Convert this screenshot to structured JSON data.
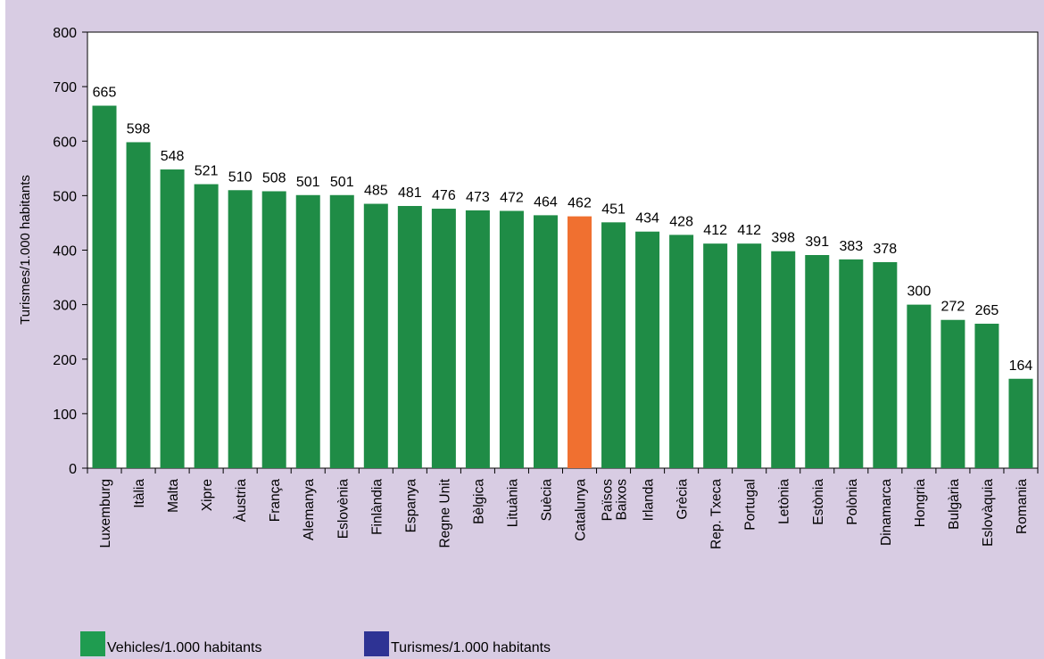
{
  "chart_data": {
    "type": "bar",
    "title": "",
    "xlabel": "",
    "ylabel": "Turismes/1.000 habitants",
    "ylim": [
      0,
      800
    ],
    "yticks": [
      0,
      100,
      200,
      300,
      400,
      500,
      600,
      700,
      800
    ],
    "grid": false,
    "legend_position": "bottom-left",
    "categories": [
      "Luxemburg",
      "Itàlia",
      "Malta",
      "Xipre",
      "Àustria",
      "França",
      "Alemanya",
      "Eslovènia",
      "Finlàndia",
      "Espanya",
      "Regne Unit",
      "Bèlgica",
      "Lituània",
      "Suècia",
      "Catalunya",
      "Països Baixos",
      "Irlanda",
      "Grècia",
      "Rep. Txeca",
      "Portugal",
      "Letònia",
      "Estònia",
      "Polònia",
      "Dinamarca",
      "Hongria",
      "Bulgària",
      "Eslovàquia",
      "Romania"
    ],
    "series": [
      {
        "name": "Vehicles/1.000 habitants",
        "values": [
          665,
          598,
          548,
          521,
          510,
          508,
          501,
          501,
          485,
          481,
          476,
          473,
          472,
          464,
          462,
          451,
          434,
          428,
          412,
          412,
          398,
          391,
          383,
          378,
          300,
          272,
          265,
          164
        ]
      }
    ],
    "highlight": {
      "category": "Catalunya",
      "color": "#f07030"
    },
    "colors": {
      "bar": "#1f8c46",
      "highlight": "#f07030",
      "background": "#d8cce3",
      "plot_background": "#ffffff"
    },
    "legend": [
      {
        "label": "Vehicles/1.000 habitants",
        "color": "#1f9c50"
      },
      {
        "label": "Turismes/1.000 habitants",
        "color": "#2e3394"
      }
    ]
  }
}
